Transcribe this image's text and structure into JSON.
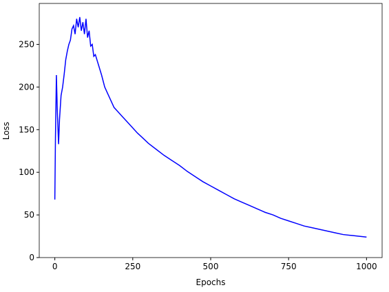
{
  "chart_data": {
    "type": "line",
    "xlabel": "Epochs",
    "ylabel": "Loss",
    "x": [
      0,
      2,
      5,
      8,
      12,
      15,
      20,
      25,
      30,
      35,
      40,
      45,
      50,
      55,
      60,
      65,
      70,
      75,
      80,
      85,
      90,
      95,
      100,
      105,
      110,
      115,
      120,
      125,
      130,
      140,
      150,
      160,
      170,
      180,
      190,
      200,
      215,
      230,
      250,
      265,
      280,
      300,
      325,
      350,
      375,
      400,
      425,
      450,
      475,
      500,
      525,
      550,
      575,
      600,
      625,
      650,
      675,
      700,
      725,
      750,
      775,
      800,
      825,
      850,
      875,
      900,
      925,
      950,
      975,
      1000
    ],
    "series": [
      {
        "name": "Loss",
        "color": "#0000ff",
        "values": [
          68,
          140,
          214,
          172,
          133,
          162,
          190,
          200,
          215,
          232,
          242,
          250,
          255,
          268,
          272,
          262,
          280,
          270,
          282,
          266,
          276,
          262,
          280,
          258,
          266,
          248,
          250,
          236,
          238,
          226,
          214,
          200,
          192,
          184,
          176,
          172,
          166,
          160,
          152,
          146,
          141,
          134,
          127,
          120,
          114,
          108,
          101,
          95,
          89,
          84,
          79,
          74,
          69,
          65,
          61,
          57,
          53,
          50,
          46,
          43,
          40,
          37,
          35,
          33,
          31,
          29,
          27,
          26,
          25,
          24
        ]
      }
    ],
    "xlim": [
      -50,
      1050
    ],
    "ylim": [
      0,
      298
    ],
    "xticks": [
      0,
      250,
      500,
      750,
      1000
    ],
    "yticks": [
      0,
      50,
      100,
      150,
      200,
      250
    ]
  }
}
